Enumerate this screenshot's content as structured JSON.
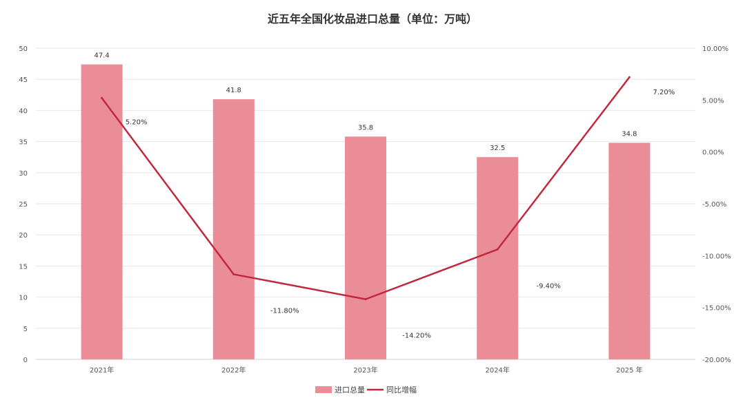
{
  "chart_data": {
    "type": "bar",
    "title": "近五年全国化妆品进口总量（单位：万吨）",
    "categories": [
      "2021年",
      "2022年",
      "2023年",
      "2024年",
      "2025 年"
    ],
    "series": [
      {
        "name": "进口总量",
        "type": "bar",
        "axis": "left",
        "values": [
          47.4,
          41.8,
          35.8,
          32.5,
          34.8
        ],
        "labels": [
          "47.4",
          "41.8",
          "35.8",
          "32.5",
          "34.8"
        ]
      },
      {
        "name": "同比增幅",
        "type": "line",
        "axis": "right",
        "values": [
          5.2,
          -11.8,
          -14.2,
          -9.4,
          7.2
        ],
        "labels": [
          "5.20%",
          "-11.80%",
          "-14.20%",
          "-9.40%",
          "7.20%"
        ]
      }
    ],
    "y_left": {
      "min": 0,
      "max": 50,
      "ticks": [
        "0",
        "5",
        "10",
        "15",
        "20",
        "25",
        "30",
        "35",
        "40",
        "45",
        "50"
      ]
    },
    "y_right": {
      "min": -20,
      "max": 10,
      "ticks": [
        "-20.00%",
        "-15.00%",
        "-10.00%",
        "-5.00%",
        "0.00%",
        "5.00%",
        "10.00%"
      ]
    },
    "grid": true,
    "legend_position": "bottom-center",
    "colors": {
      "bar": "#eb8d97",
      "line": "#c0283d",
      "grid": "#e6e6e6"
    }
  }
}
